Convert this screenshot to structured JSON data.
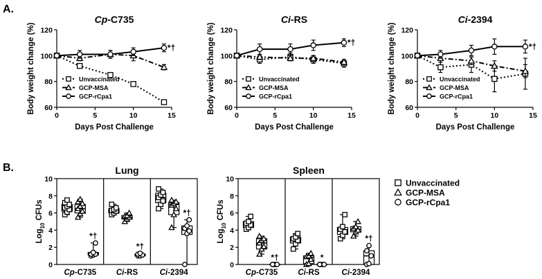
{
  "panel_labels": {
    "a": "A.",
    "b": "B."
  },
  "legend_b": [
    {
      "name": "Unvaccinated",
      "marker": "square"
    },
    {
      "name": "GCP-MSA",
      "marker": "triangle"
    },
    {
      "name": "GCP-rCpa1",
      "marker": "circle"
    }
  ],
  "chart_data": [
    {
      "type": "line",
      "title_italic": "Cp",
      "title_rest": "-C735",
      "xlabel": "Days Post Challenge",
      "ylabel": "Body weight change (%)",
      "xlim": [
        0,
        15
      ],
      "ylim": [
        60,
        120
      ],
      "xticks": [
        0,
        5,
        10,
        15
      ],
      "yticks": [
        60,
        80,
        100,
        120
      ],
      "annotation": "*†",
      "legend": [
        "Unvaccinated",
        "GCP-MSA",
        "GCP-rCpa1"
      ],
      "series": [
        {
          "name": "Unvaccinated",
          "marker": "square",
          "dash": "dot",
          "x": [
            0,
            3,
            7,
            10,
            14
          ],
          "y": [
            100,
            92,
            85,
            78,
            64
          ],
          "err": [
            0,
            1,
            1,
            1,
            1
          ]
        },
        {
          "name": "GCP-MSA",
          "marker": "triangle",
          "dash": "dashdot",
          "x": [
            0,
            3,
            7,
            10,
            14
          ],
          "y": [
            100,
            98,
            101,
            100,
            91
          ],
          "err": [
            0,
            2,
            3,
            4,
            2
          ]
        },
        {
          "name": "GCP-rCpa1",
          "marker": "circle",
          "dash": "solid",
          "x": [
            0,
            3,
            7,
            10,
            14
          ],
          "y": [
            100,
            101,
            101,
            103,
            106
          ],
          "err": [
            0,
            3,
            3,
            3,
            3
          ]
        }
      ]
    },
    {
      "type": "line",
      "title_italic": "Ci",
      "title_rest": "-RS",
      "xlabel": "Days Post Challenge",
      "ylabel": "Body weight change (%)",
      "xlim": [
        0,
        15
      ],
      "ylim": [
        60,
        120
      ],
      "xticks": [
        0,
        5,
        10,
        15
      ],
      "yticks": [
        60,
        80,
        100,
        120
      ],
      "annotation": "*†",
      "legend": [
        "Unvaccinated",
        "GCP-MSA",
        "GCP-rCpa1"
      ],
      "series": [
        {
          "name": "Unvaccinated",
          "marker": "square",
          "dash": "dot",
          "x": [
            0,
            3,
            7,
            10,
            14
          ],
          "y": [
            100,
            97,
            99,
            97,
            94
          ],
          "err": [
            0,
            3,
            3,
            3,
            3
          ]
        },
        {
          "name": "GCP-MSA",
          "marker": "triangle",
          "dash": "dashdot",
          "x": [
            0,
            3,
            7,
            10,
            14
          ],
          "y": [
            100,
            99,
            98,
            98,
            95
          ],
          "err": [
            0,
            2,
            2,
            2,
            2
          ]
        },
        {
          "name": "GCP-rCpa1",
          "marker": "circle",
          "dash": "solid",
          "x": [
            0,
            3,
            7,
            10,
            14
          ],
          "y": [
            100,
            105,
            105,
            108,
            110
          ],
          "err": [
            0,
            4,
            4,
            4,
            3
          ]
        }
      ]
    },
    {
      "type": "line",
      "title_italic": "Ci",
      "title_rest": "-2394",
      "xlabel": "Days Post Challenge",
      "ylabel": "Body weight change (%)",
      "xlim": [
        0,
        15
      ],
      "ylim": [
        60,
        120
      ],
      "xticks": [
        0,
        5,
        10,
        15
      ],
      "yticks": [
        60,
        80,
        100,
        120
      ],
      "annotation": "*†",
      "legend": [
        "Unvaccinated",
        "GCP-MSA",
        "GCP-rCpa1"
      ],
      "series": [
        {
          "name": "Unvaccinated",
          "marker": "square",
          "dash": "dot",
          "x": [
            0,
            3,
            7,
            10,
            14
          ],
          "y": [
            100,
            91,
            93,
            82,
            86
          ],
          "err": [
            0,
            4,
            6,
            10,
            12
          ]
        },
        {
          "name": "GCP-MSA",
          "marker": "triangle",
          "dash": "dashdot",
          "x": [
            0,
            3,
            7,
            10,
            14
          ],
          "y": [
            100,
            98,
            96,
            92,
            88
          ],
          "err": [
            0,
            3,
            3,
            4,
            5
          ]
        },
        {
          "name": "GCP-rCpa1",
          "marker": "circle",
          "dash": "solid",
          "x": [
            0,
            3,
            7,
            10,
            14
          ],
          "y": [
            100,
            101,
            104,
            107,
            107
          ],
          "err": [
            0,
            3,
            4,
            6,
            5
          ]
        }
      ]
    },
    {
      "type": "box",
      "title": "Lung",
      "ylabel_main": "Log",
      "ylabel_sub": "10",
      "ylabel_rest": " CFUs",
      "ylim": [
        0,
        10
      ],
      "yticks": [
        0,
        2,
        4,
        6,
        8,
        10
      ],
      "groups": [
        {
          "label_italic": "Cp",
          "label_rest": "-C735",
          "boxes": [
            {
              "series": "Unvaccinated",
              "marker": "square",
              "q1": 6.2,
              "median": 6.7,
              "q3": 7.0,
              "min": 5.8,
              "max": 7.5,
              "points": [
                5.8,
                6.1,
                6.4,
                6.6,
                6.8,
                7.0,
                7.2,
                7.5
              ]
            },
            {
              "series": "GCP-MSA",
              "marker": "triangle",
              "q1": 6.0,
              "median": 6.5,
              "q3": 7.0,
              "min": 5.5,
              "max": 7.6,
              "points": [
                5.5,
                5.9,
                6.2,
                6.5,
                6.8,
                7.1,
                7.3,
                7.6
              ]
            },
            {
              "series": "GCP-rCpa1",
              "marker": "circle",
              "q1": 1.1,
              "median": 1.2,
              "q3": 1.4,
              "min": 1.0,
              "max": 2.5,
              "points": [
                1.0,
                1.1,
                1.2,
                1.2,
                1.4,
                2.5
              ],
              "annotation": "*†"
            }
          ]
        },
        {
          "label_italic": "Ci",
          "label_rest": "-RS",
          "boxes": [
            {
              "series": "Unvaccinated",
              "marker": "square",
              "q1": 6.0,
              "median": 6.3,
              "q3": 6.5,
              "min": 5.8,
              "max": 7.0,
              "points": [
                5.8,
                6.0,
                6.2,
                6.3,
                6.4,
                6.6,
                7.0
              ]
            },
            {
              "series": "GCP-MSA",
              "marker": "triangle",
              "q1": 5.3,
              "median": 5.5,
              "q3": 5.7,
              "min": 5.0,
              "max": 6.0,
              "points": [
                5.0,
                5.3,
                5.5,
                5.6,
                5.7,
                6.0
              ]
            },
            {
              "series": "GCP-rCpa1",
              "marker": "circle",
              "q1": 1.0,
              "median": 1.1,
              "q3": 1.2,
              "min": 1.0,
              "max": 1.3,
              "points": [
                1.0,
                1.0,
                1.1,
                1.2,
                1.3
              ],
              "annotation": "*†"
            }
          ]
        },
        {
          "label_italic": "Ci",
          "label_rest": "-2394",
          "boxes": [
            {
              "series": "Unvaccinated",
              "marker": "square",
              "q1": 7.2,
              "median": 7.8,
              "q3": 8.3,
              "min": 6.5,
              "max": 8.8,
              "points": [
                6.5,
                7.0,
                7.4,
                7.8,
                8.1,
                8.4,
                8.8
              ]
            },
            {
              "series": "GCP-MSA",
              "marker": "triangle",
              "q1": 5.8,
              "median": 7.0,
              "q3": 7.2,
              "min": 4.3,
              "max": 7.5,
              "points": [
                4.3,
                5.8,
                6.5,
                6.9,
                7.1,
                7.3,
                7.5
              ]
            },
            {
              "series": "GCP-rCpa1",
              "marker": "circle",
              "q1": 3.5,
              "median": 4.0,
              "q3": 4.5,
              "min": 0.0,
              "max": 5.2,
              "points": [
                0.0,
                3.6,
                3.9,
                4.2,
                4.5,
                5.2
              ],
              "annotation": "*†"
            }
          ]
        }
      ]
    },
    {
      "type": "box",
      "title": "Spleen",
      "ylabel_main": "Log",
      "ylabel_sub": "10",
      "ylabel_rest": " CFUs",
      "ylim": [
        0,
        10
      ],
      "yticks": [
        0,
        2,
        4,
        6,
        8,
        10
      ],
      "groups": [
        {
          "label_italic": "Cp",
          "label_rest": "-C735",
          "boxes": [
            {
              "series": "Unvaccinated",
              "marker": "square",
              "q1": 4.3,
              "median": 4.7,
              "q3": 5.0,
              "min": 4.1,
              "max": 5.6,
              "points": [
                4.1,
                4.3,
                4.6,
                4.8,
                5.0,
                5.6
              ]
            },
            {
              "series": "GCP-MSA",
              "marker": "triangle",
              "q1": 1.8,
              "median": 2.5,
              "q3": 3.0,
              "min": 1.2,
              "max": 3.3,
              "points": [
                1.2,
                1.8,
                2.1,
                2.5,
                2.8,
                3.0,
                3.3
              ]
            },
            {
              "series": "GCP-rCpa1",
              "marker": "circle",
              "q1": 0,
              "median": 0,
              "q3": 0,
              "min": 0,
              "max": 0,
              "points": [
                0,
                0,
                0,
                0
              ],
              "annotation": "*†"
            }
          ]
        },
        {
          "label_italic": "Ci",
          "label_rest": "-RS",
          "boxes": [
            {
              "series": "Unvaccinated",
              "marker": "square",
              "q1": 2.5,
              "median": 2.9,
              "q3": 3.2,
              "min": 1.8,
              "max": 3.6,
              "points": [
                1.8,
                2.4,
                2.8,
                3.0,
                3.2,
                3.6
              ]
            },
            {
              "series": "GCP-MSA",
              "marker": "triangle",
              "q1": 0.1,
              "median": 0.8,
              "q3": 1.0,
              "min": 0,
              "max": 1.3,
              "points": [
                0,
                0.1,
                0.6,
                0.9,
                1.0,
                1.3
              ]
            },
            {
              "series": "GCP-rCpa1",
              "marker": "circle",
              "q1": 0,
              "median": 0,
              "q3": 0,
              "min": 0,
              "max": 0,
              "points": [
                0,
                0,
                0,
                0
              ],
              "annotation": "*"
            }
          ]
        },
        {
          "label_italic": "Ci",
          "label_rest": "-2394",
          "boxes": [
            {
              "series": "Unvaccinated",
              "marker": "square",
              "q1": 3.5,
              "median": 3.9,
              "q3": 4.3,
              "min": 3.0,
              "max": 5.8,
              "points": [
                3.0,
                3.4,
                3.8,
                4.1,
                4.4,
                5.8
              ]
            },
            {
              "series": "GCP-MSA",
              "marker": "triangle",
              "q1": 3.8,
              "median": 4.1,
              "q3": 4.4,
              "min": 3.3,
              "max": 5.0,
              "points": [
                3.3,
                3.8,
                4.0,
                4.2,
                4.4,
                5.0
              ]
            },
            {
              "series": "GCP-rCpa1",
              "marker": "circle",
              "q1": 0,
              "median": 1.0,
              "q3": 1.6,
              "min": 0,
              "max": 2.2,
              "points": [
                0,
                0.1,
                1.0,
                1.6,
                2.2
              ],
              "annotation": "*†"
            }
          ]
        }
      ]
    }
  ]
}
